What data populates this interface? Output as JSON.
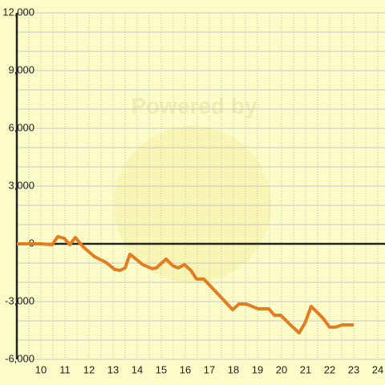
{
  "chart_data": {
    "type": "line",
    "watermark": "Powered by",
    "x": [
      9,
      9.97,
      10.47,
      10.7,
      10.97,
      11.2,
      11.43,
      11.73,
      12.23,
      12.7,
      13.07,
      13.3,
      13.5,
      13.7,
      14.03,
      14.23,
      14.63,
      14.8,
      15.2,
      15.47,
      15.7,
      15.97,
      16.23,
      16.47,
      16.77,
      17.37,
      17.97,
      18.23,
      18.53,
      19.03,
      19.47,
      19.7,
      19.97,
      20.37,
      20.73,
      20.97,
      21.23,
      21.5,
      21.73,
      22.0,
      22.23,
      22.53,
      23.0
    ],
    "series": [
      {
        "color": "#e37d22",
        "values": [
          0,
          0,
          -40,
          375,
          290,
          -40,
          330,
          -125,
          -670,
          -960,
          -1330,
          -1375,
          -1250,
          -540,
          -875,
          -1080,
          -1290,
          -1250,
          -790,
          -1125,
          -1250,
          -1080,
          -1375,
          -1830,
          -1830,
          -2625,
          -3420,
          -3125,
          -3125,
          -3375,
          -3375,
          -3710,
          -3710,
          -4210,
          -4625,
          -4125,
          -3250,
          -3580,
          -3875,
          -4330,
          -4330,
          -4210,
          -4210
        ]
      }
    ],
    "xlim": [
      9,
      24.3
    ],
    "ylim": [
      -6000,
      12000
    ],
    "xticks": [
      10,
      11,
      12,
      13,
      14,
      15,
      16,
      17,
      18,
      19,
      20,
      21,
      22,
      23,
      24
    ],
    "yticks": [
      {
        "value": -6000,
        "label": "-6,000"
      },
      {
        "value": -3000,
        "label": "-3,000"
      },
      0,
      {
        "value": 3000,
        "label": "3,000"
      },
      {
        "value": 6000,
        "label": "6,000"
      },
      {
        "value": 9000,
        "label": "9,000"
      },
      {
        "value": 12000,
        "label": "12,000"
      }
    ],
    "y_minor_ticks": [
      -5000,
      -4000,
      -2000,
      -1000,
      1000,
      2000,
      4000,
      5000,
      7000,
      8000,
      10000,
      11000
    ],
    "x_minor_ticks": [
      9.5,
      10.5,
      11.5,
      12.5,
      13.5,
      14.5,
      15.5,
      16.5,
      17.5,
      18.5,
      19.5,
      20.5,
      21.5,
      22.5,
      23.5
    ],
    "grid": true
  }
}
